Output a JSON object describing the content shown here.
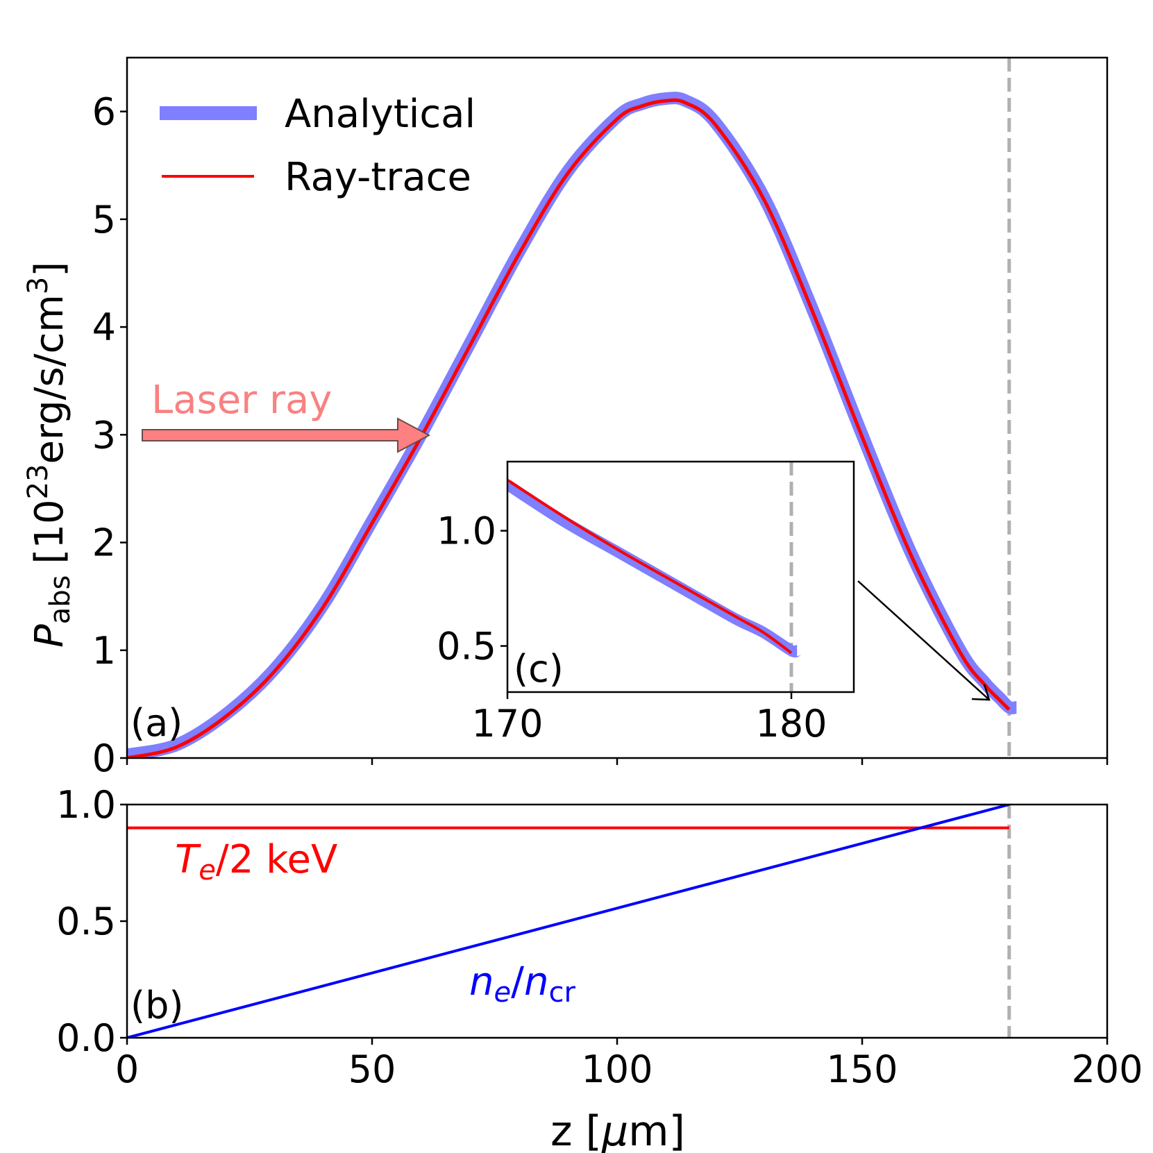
{
  "chart_data": [
    {
      "id": "a",
      "type": "line",
      "panel_label": "(a)",
      "xlim": [
        0,
        200
      ],
      "ylim": [
        0,
        6.5
      ],
      "yticks": [
        0,
        1,
        2,
        3,
        4,
        5,
        6
      ],
      "ytick_labels": [
        "0",
        "1",
        "2",
        "3",
        "4",
        "5",
        "6"
      ],
      "ylabel": {
        "symbol": "P",
        "sub": "abs",
        "unit_pre": "[10",
        "exp": "23",
        "unit_mid": "erg/s/cm",
        "exp2": "3",
        "unit_post": "]"
      },
      "legend": {
        "placement": "top-left",
        "entries": [
          {
            "label": "Analytical",
            "color": "#7f7fff"
          },
          {
            "label": "Ray-trace",
            "color": "#ff0000"
          }
        ]
      },
      "series": [
        {
          "name": "Analytical",
          "color": "#7f7fff",
          "x": [
            0,
            10,
            20,
            30,
            40,
            50,
            60,
            70,
            80,
            90,
            100,
            105,
            110,
            114,
            120,
            130,
            140,
            150,
            160,
            170,
            175,
            178,
            180,
            181.5
          ],
          "y": [
            0.03,
            0.12,
            0.4,
            0.82,
            1.42,
            2.2,
            3.0,
            3.85,
            4.7,
            5.45,
            5.95,
            6.07,
            6.12,
            6.1,
            5.9,
            5.2,
            4.15,
            3.0,
            1.9,
            1.0,
            0.7,
            0.56,
            0.47,
            0.47
          ]
        },
        {
          "name": "Ray-trace",
          "color": "#ff0000",
          "x": [
            0,
            10,
            20,
            30,
            40,
            50,
            60,
            70,
            80,
            90,
            100,
            105,
            110,
            114,
            120,
            130,
            140,
            150,
            160,
            170,
            175,
            178,
            180
          ],
          "y": [
            0.0,
            0.1,
            0.38,
            0.8,
            1.4,
            2.18,
            2.98,
            3.83,
            4.68,
            5.43,
            5.93,
            6.05,
            6.1,
            6.08,
            5.88,
            5.18,
            4.13,
            2.98,
            1.88,
            0.98,
            0.68,
            0.54,
            0.45
          ]
        }
      ],
      "annotation": {
        "text": "Laser ray",
        "arrow_color": "#ff8080",
        "y": 3.0
      },
      "vline_x": 180
    },
    {
      "id": "b",
      "type": "line",
      "panel_label": "(b)",
      "xlabel": "z [μm]",
      "xlim": [
        0,
        200
      ],
      "ylim": [
        0,
        1.0
      ],
      "xticks": [
        0,
        50,
        100,
        150,
        200
      ],
      "xtick_labels": [
        "0",
        "50",
        "100",
        "150",
        "200"
      ],
      "yticks": [
        0.0,
        0.5,
        1.0
      ],
      "ytick_labels": [
        "0.0",
        "0.5",
        "1.0"
      ],
      "series": [
        {
          "name": "Te/2 keV",
          "color": "#ff0000",
          "x": [
            0,
            180
          ],
          "y": [
            0.9,
            0.9
          ]
        },
        {
          "name": "ne/ncr",
          "color": "#0000ff",
          "x": [
            0,
            180
          ],
          "y": [
            0.0,
            1.0
          ]
        }
      ],
      "vline_x": 180
    },
    {
      "id": "c",
      "type": "line",
      "panel_label": "(c)",
      "xlim": [
        170,
        182.2
      ],
      "ylim": [
        0.3,
        1.3
      ],
      "xticks": [
        170,
        180
      ],
      "xtick_labels": [
        "170",
        "180"
      ],
      "yticks": [
        0.5,
        1.0
      ],
      "ytick_labels": [
        "0.5",
        "1.0"
      ],
      "series": [
        {
          "name": "Analytical",
          "color": "#7f7fff",
          "x": [
            170,
            172,
            174,
            176,
            178,
            179,
            180,
            180.2
          ],
          "y": [
            1.2,
            1.04,
            0.9,
            0.76,
            0.62,
            0.56,
            0.48,
            0.48
          ]
        },
        {
          "name": "Ray-trace",
          "color": "#ff0000",
          "x": [
            170,
            172,
            174,
            176,
            178,
            179,
            180
          ],
          "y": [
            1.22,
            1.06,
            0.91,
            0.77,
            0.63,
            0.56,
            0.47
          ]
        }
      ],
      "vline_x": 180
    }
  ],
  "labels": {
    "te_label": {
      "var": "T",
      "sub": "e",
      "rest": "/2 keV"
    },
    "ne_label": {
      "var": "n",
      "sub": "e",
      "slash": "/",
      "var2": "n",
      "sub2": "cr"
    },
    "xlabel_pre": "z [",
    "xlabel_mu": "μ",
    "xlabel_post": "m]"
  }
}
